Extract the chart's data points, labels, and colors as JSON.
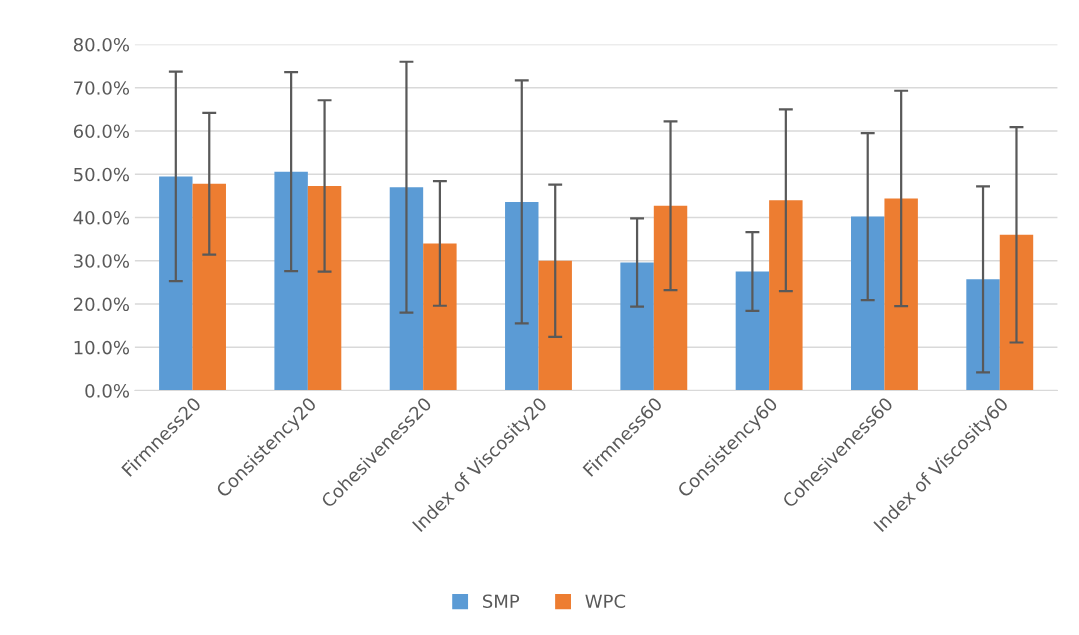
{
  "chart_data": {
    "type": "bar",
    "categories": [
      "Firmness20",
      "Consistency20",
      "Cohesiveness20",
      "Index of Viscosity20",
      "Firmness60",
      "Consistency60",
      "Cohesiveness60",
      "Index of Viscosity60"
    ],
    "series": [
      {
        "name": "SMP",
        "color": "#5b9bd5",
        "values": [
          49.5,
          50.6,
          47.0,
          43.6,
          29.6,
          27.5,
          40.2,
          25.7
        ],
        "errors": [
          24.2,
          23.0,
          29.0,
          28.1,
          10.2,
          9.1,
          19.3,
          21.5
        ]
      },
      {
        "name": "WPC",
        "color": "#ed7d31",
        "values": [
          47.8,
          47.3,
          34.0,
          30.0,
          42.7,
          44.0,
          44.4,
          36.0
        ],
        "errors": [
          16.4,
          19.8,
          14.4,
          17.6,
          19.5,
          21.0,
          24.9,
          24.9
        ]
      }
    ],
    "ylim": [
      0,
      80
    ],
    "yticks": [
      {
        "value": 0,
        "label": "0.0%"
      },
      {
        "value": 10,
        "label": "10.0%"
      },
      {
        "value": 20,
        "label": "20.0%"
      },
      {
        "value": 30,
        "label": "30.0%"
      },
      {
        "value": 40,
        "label": "40.0%"
      },
      {
        "value": 50,
        "label": "50.0%"
      },
      {
        "value": 60,
        "label": "60.0%"
      },
      {
        "value": 70,
        "label": "70.0%"
      },
      {
        "value": 80,
        "label": "80.0%"
      }
    ],
    "grid": "y",
    "legend": "bottom"
  }
}
